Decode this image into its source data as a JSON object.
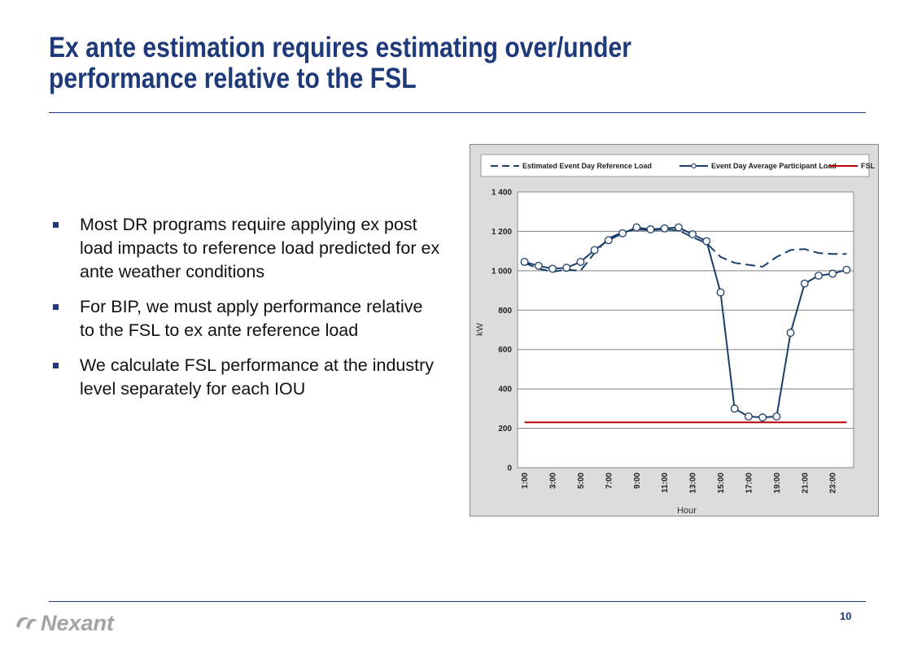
{
  "slide": {
    "title_line1": "Ex ante estimation requires estimating over/under",
    "title_line2": "performance relative to the FSL",
    "bullets": [
      "Most DR programs require applying ex post load impacts to reference load predicted for ex ante weather conditions",
      "For BIP, we must apply performance relative to the FSL to ex ante reference load",
      "We calculate FSL performance at the industry level separately for each IOU"
    ],
    "page_number": "10",
    "logo_text": "Nexant",
    "brand_color": "#1f3a7a"
  },
  "chart_data": {
    "type": "line",
    "x": [
      "1:00",
      "2:00",
      "3:00",
      "4:00",
      "5:00",
      "6:00",
      "7:00",
      "8:00",
      "9:00",
      "10:00",
      "11:00",
      "12:00",
      "13:00",
      "14:00",
      "15:00",
      "16:00",
      "17:00",
      "18:00",
      "19:00",
      "20:00",
      "21:00",
      "22:00",
      "23:00",
      "24:00"
    ],
    "x_tick_labels": [
      "1:00",
      "3:00",
      "5:00",
      "7:00",
      "9:00",
      "11:00",
      "13:00",
      "15:00",
      "17:00",
      "19:00",
      "21:00",
      "23:00"
    ],
    "xlabel": "Hour",
    "ylabel": "kW",
    "ylim": [
      0,
      1400
    ],
    "y_ticks": [
      0,
      200,
      400,
      600,
      800,
      1000,
      1200,
      1400
    ],
    "y_tick_labels": [
      "0",
      "200",
      "400",
      "600",
      "800",
      "1 000",
      "1 200",
      "1 400"
    ],
    "grid": true,
    "legend_position": "top",
    "series": [
      {
        "name": "Estimated Event Day Reference Load",
        "style": "dashed",
        "color": "#1b3f6b",
        "values": [
          1040,
          1010,
          995,
          1005,
          1000,
          1090,
          1165,
          1195,
          1210,
          1205,
          1210,
          1205,
          1170,
          1140,
          1070,
          1040,
          1030,
          1020,
          1070,
          1105,
          1110,
          1090,
          1085,
          1085
        ]
      },
      {
        "name": "Event Day Average Participant Load",
        "style": "solid-markers",
        "color": "#1b3f6b",
        "values": [
          1045,
          1025,
          1010,
          1015,
          1045,
          1105,
          1155,
          1190,
          1220,
          1210,
          1215,
          1220,
          1185,
          1150,
          890,
          300,
          260,
          255,
          260,
          685,
          935,
          975,
          985,
          1005
        ]
      },
      {
        "name": "FSL",
        "style": "solid",
        "color": "#c00000",
        "values": [
          230,
          230,
          230,
          230,
          230,
          230,
          230,
          230,
          230,
          230,
          230,
          230,
          230,
          230,
          230,
          230,
          230,
          230,
          230,
          230,
          230,
          230,
          230,
          230
        ]
      }
    ]
  }
}
